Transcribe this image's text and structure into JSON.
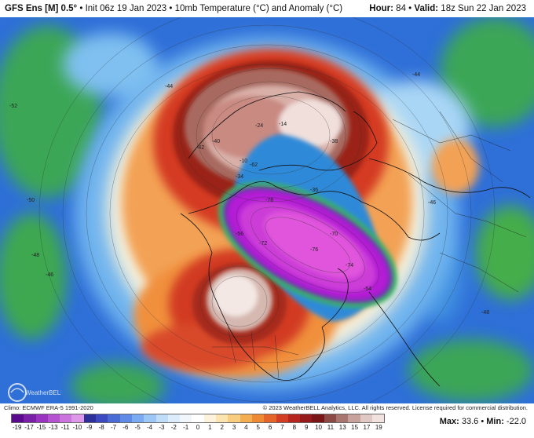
{
  "header": {
    "model": "GFS Ens [M] 0.5°",
    "run": "Init 06z 19 Jan 2023",
    "sep": "•",
    "product": "10mb Temperature (°C) and Anomaly (°C)",
    "hour_label": "Hour:",
    "hour": "84",
    "valid_label": "Valid:",
    "valid": "18z Sun 22 Jan 2023"
  },
  "footer": {
    "climo": "Climo: ECMWF ERA-5 1991-2020",
    "copyright": "© 2023 WeatherBELL Analytics, LLC. All rights reserved. License required for commercial distribution.",
    "max_label": "Max:",
    "max": "33.6",
    "min_label": "Min:",
    "min": "-22.0",
    "dot": "•"
  },
  "logo": {
    "text": "WeatherBELL"
  },
  "colorbar": {
    "ticks": [
      "-19",
      "-17",
      "-15",
      "-13",
      "-11",
      "-10",
      "-9",
      "-8",
      "-7",
      "-6",
      "-5",
      "-4",
      "-3",
      "-2",
      "-1",
      "0",
      "1",
      "2",
      "3",
      "4",
      "5",
      "6",
      "7",
      "8",
      "9",
      "10",
      "11",
      "13",
      "15",
      "17",
      "19"
    ],
    "colors": [
      "#5b0a8f",
      "#7a1fa8",
      "#9a34c0",
      "#b552d0",
      "#cc74de",
      "#dd98e9",
      "#2f2f9a",
      "#3c49c0",
      "#4a6ad6",
      "#5f8be6",
      "#7aaaf2",
      "#9cc6f6",
      "#bfdcf8",
      "#dcecfa",
      "#f0f6fc",
      "#ffffff",
      "#fdf3dc",
      "#fbe4b0",
      "#f8cd7e",
      "#f4ae52",
      "#ef8a34",
      "#e4642a",
      "#d23d24",
      "#b72520",
      "#951a1c",
      "#7a1518",
      "#8b4a45",
      "#a87570",
      "#c7a29c",
      "#e0c8c4",
      "#f1e2e0"
    ]
  },
  "map": {
    "contour_labels": [
      "-52",
      "-50",
      "-48",
      "-46",
      "-44",
      "-42",
      "-40",
      "-38",
      "-36",
      "-34",
      "-24",
      "-14",
      "-10",
      "-78",
      "-76",
      "-74",
      "-70",
      "-62",
      "-56",
      "-54",
      "-72",
      "-44",
      "-46",
      "-48"
    ],
    "colors": {
      "purple": "#b520d8",
      "magenta": "#d640d8",
      "green_ring": "#30a060",
      "brown": "#8a3a2a",
      "cream": "#f3e4dc",
      "red": "#c82a1c",
      "orange": "#f09040",
      "blue": "#2f6fd6",
      "green": "#3aa04a"
    }
  }
}
